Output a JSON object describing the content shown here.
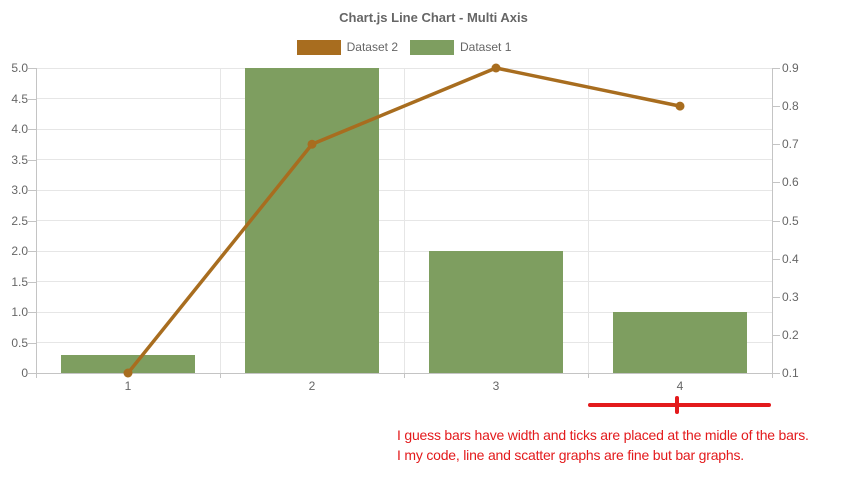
{
  "title": "Chart.js Line Chart - Multi Axis",
  "colors": {
    "bar": "#7e9e60",
    "line": "#a86d1f",
    "grid": "#e6e6e6",
    "axis": "#c4c4c4",
    "tick_text": "#666666",
    "annotation_red": "#e31a1c"
  },
  "legend": {
    "items": [
      {
        "label": "Dataset 2",
        "color": "#a86d1f"
      },
      {
        "label": "Dataset 1",
        "color": "#7e9e60"
      }
    ]
  },
  "chart_data": {
    "type": "bar+line (multi-axis combo)",
    "categories": [
      "1",
      "2",
      "3",
      "4"
    ],
    "series": [
      {
        "name": "Dataset 2",
        "type": "line",
        "axis": "right",
        "color": "#a86d1f",
        "values": [
          0.1,
          0.7,
          0.9,
          0.8
        ]
      },
      {
        "name": "Dataset 1",
        "type": "bar",
        "axis": "left",
        "color": "#7e9e60",
        "values": [
          0.3,
          5,
          2,
          1
        ]
      }
    ],
    "title": "Chart.js Line Chart - Multi Axis",
    "xlabel": "",
    "ylabel_left": "",
    "ylabel_right": "",
    "left_axis": {
      "min": 0,
      "max": 5,
      "step": 0.5,
      "tick_labels": [
        "0",
        "0.5",
        "1.0",
        "1.5",
        "2.0",
        "2.5",
        "3.0",
        "3.5",
        "4.0",
        "4.5",
        "5.0"
      ]
    },
    "right_axis": {
      "min": 0.1,
      "max": 0.9,
      "step": 0.1,
      "tick_labels": [
        "0.1",
        "0.2",
        "0.3",
        "0.4",
        "0.5",
        "0.6",
        "0.7",
        "0.8",
        "0.9"
      ]
    },
    "grid": true,
    "legend_position": "top"
  },
  "annotation": {
    "line1": "I guess bars have width and ticks are placed at the midle of the bars.",
    "line2": "I my code, line and scatter graphs are fine but bar graphs.",
    "color": "#e31a1c"
  }
}
